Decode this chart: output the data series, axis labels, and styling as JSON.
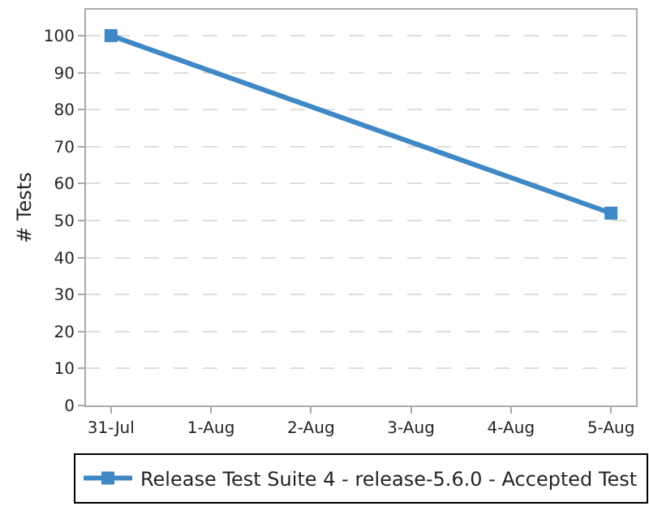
{
  "chart_data": {
    "type": "line",
    "ylabel": "# Tests",
    "x": [
      "--07-31",
      "--08-05"
    ],
    "series": [
      {
        "name": "Release Test Suite 4 - release-5.6.0 - Accepted Test",
        "color": "#3f88c5",
        "values": [
          100,
          52
        ]
      }
    ],
    "xlim": [
      "--07-30T18:00",
      "--08-05T06:00"
    ],
    "xticks": [
      {
        "value": "--07-31",
        "label": "31-Jul"
      },
      {
        "value": "--08-01",
        "label": "1-Aug"
      },
      {
        "value": "--08-02",
        "label": "2-Aug"
      },
      {
        "value": "--08-03",
        "label": "3-Aug"
      },
      {
        "value": "--08-04",
        "label": "4-Aug"
      },
      {
        "value": "--08-05",
        "label": "5-Aug"
      }
    ],
    "ylim": [
      0,
      107
    ],
    "yticks": [
      0,
      10,
      20,
      30,
      40,
      50,
      60,
      70,
      80,
      90,
      100
    ],
    "grid": "y",
    "legend": "bottom",
    "marker": "square",
    "line_style": "solid"
  }
}
